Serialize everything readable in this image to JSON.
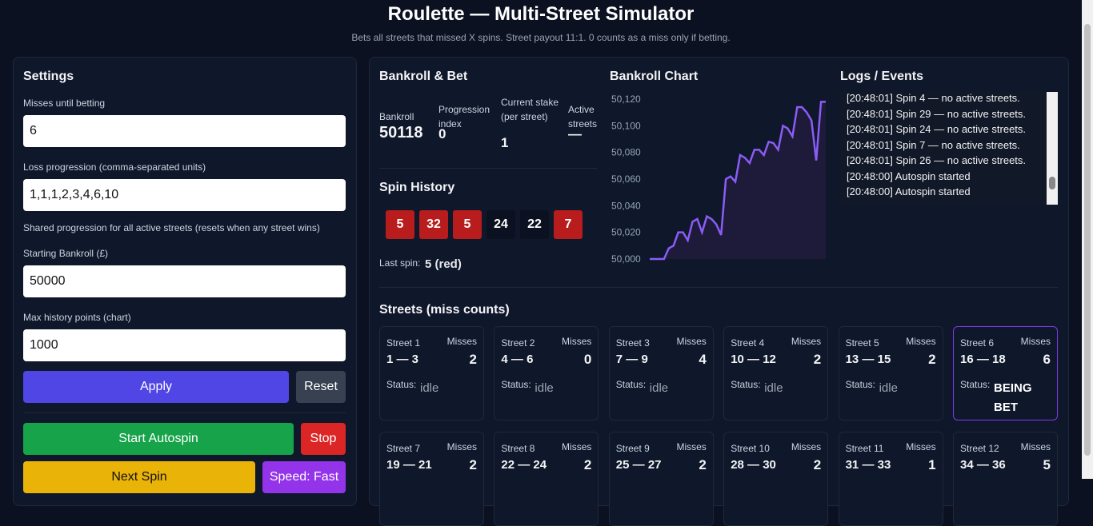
{
  "header": {
    "title": "Roulette — Multi-Street Simulator",
    "subtitle": "Bets all streets that missed X spins. Street payout 11:1. 0 counts as a miss only if betting."
  },
  "settings": {
    "title": "Settings",
    "fields": [
      {
        "label": "Misses until betting",
        "value": "6"
      },
      {
        "label": "Loss progression (comma-separated units)",
        "value": "1,1,1,2,3,4,6,10",
        "note": "Shared progression for all active streets (resets when any street wins)"
      },
      {
        "label": "Starting Bankroll (£)",
        "value": "50000"
      },
      {
        "label": "Max history points (chart)",
        "value": "1000"
      }
    ],
    "apply": "Apply",
    "reset": "Reset",
    "start": "Start Autospin",
    "stop": "Stop",
    "next": "Next Spin",
    "speed": "Speed: Fast"
  },
  "bankroll": {
    "title": "Bankroll & Bet",
    "stats": [
      {
        "label": "Bankroll",
        "value": "50118"
      },
      {
        "label": "Progression index",
        "value": "0"
      },
      {
        "label": "Current stake (per street)",
        "value": "1"
      },
      {
        "label": "Active streets",
        "value": "—"
      }
    ]
  },
  "spin_history": {
    "title": "Spin History",
    "spins": [
      {
        "number": "5",
        "color": "red"
      },
      {
        "number": "32",
        "color": "red"
      },
      {
        "number": "5",
        "color": "red"
      },
      {
        "number": "24",
        "color": "black"
      },
      {
        "number": "22",
        "color": "black"
      },
      {
        "number": "7",
        "color": "red"
      }
    ],
    "last_spin_label": "Last spin:",
    "last_spin": "5 (red)"
  },
  "bankroll_chart": {
    "title": "Bankroll Chart",
    "color": "#8b5cf6",
    "ylim": [
      50000,
      50120
    ],
    "yticks": [
      {
        "value": 50000,
        "label": "50,000"
      },
      {
        "value": 50020,
        "label": "50,020"
      },
      {
        "value": 50040,
        "label": "50,040"
      },
      {
        "value": 50060,
        "label": "50,060"
      },
      {
        "value": 50080,
        "label": "50,080"
      },
      {
        "value": 50100,
        "label": "50,100"
      },
      {
        "value": 50120,
        "label": "50,120"
      }
    ],
    "values": [
      50000,
      50000,
      50000,
      50000,
      50008,
      50010,
      50020,
      50020,
      50014,
      50028,
      50030,
      50020,
      50032,
      50030,
      50026,
      50018,
      50060,
      50062,
      50058,
      50078,
      50076,
      50072,
      50082,
      50082,
      50078,
      50088,
      50087,
      50082,
      50100,
      50098,
      50092,
      50114,
      50114,
      50110,
      50104,
      50074,
      50118,
      50118
    ]
  },
  "logs": {
    "title": "Logs / Events",
    "lines": [
      "[20:48:01] Spin 4 — no active streets.",
      "[20:48:01] Spin 29 — no active streets.",
      "[20:48:01] Spin 24 — no active streets.",
      "[20:48:01] Spin 7 — no active streets.",
      "[20:48:01] Spin 26 — no active streets.",
      "[20:48:00] Autospin started",
      "[20:48:00] Autospin started"
    ]
  },
  "streets": {
    "title": "Streets (miss counts)",
    "misses_label": "Misses",
    "status_label": "Status:",
    "items": [
      {
        "name": "Street 1",
        "range": "1 — 3",
        "misses": "2",
        "status": "idle"
      },
      {
        "name": "Street 2",
        "range": "4 — 6",
        "misses": "0",
        "status": "idle"
      },
      {
        "name": "Street 3",
        "range": "7 — 9",
        "misses": "4",
        "status": "idle"
      },
      {
        "name": "Street 4",
        "range": "10 — 12",
        "misses": "2",
        "status": "idle"
      },
      {
        "name": "Street 5",
        "range": "13 — 15",
        "misses": "2",
        "status": "idle"
      },
      {
        "name": "Street 6",
        "range": "16 — 18",
        "misses": "6",
        "status": "BEING BET"
      },
      {
        "name": "Street 7",
        "range": "19 — 21",
        "misses": "2"
      },
      {
        "name": "Street 8",
        "range": "22 — 24",
        "misses": "2"
      },
      {
        "name": "Street 9",
        "range": "25 — 27",
        "misses": "2"
      },
      {
        "name": "Street 10",
        "range": "28 — 30",
        "misses": "2"
      },
      {
        "name": "Street 11",
        "range": "31 — 33",
        "misses": "1"
      },
      {
        "name": "Street 12",
        "range": "34 — 36",
        "misses": "5"
      }
    ]
  }
}
